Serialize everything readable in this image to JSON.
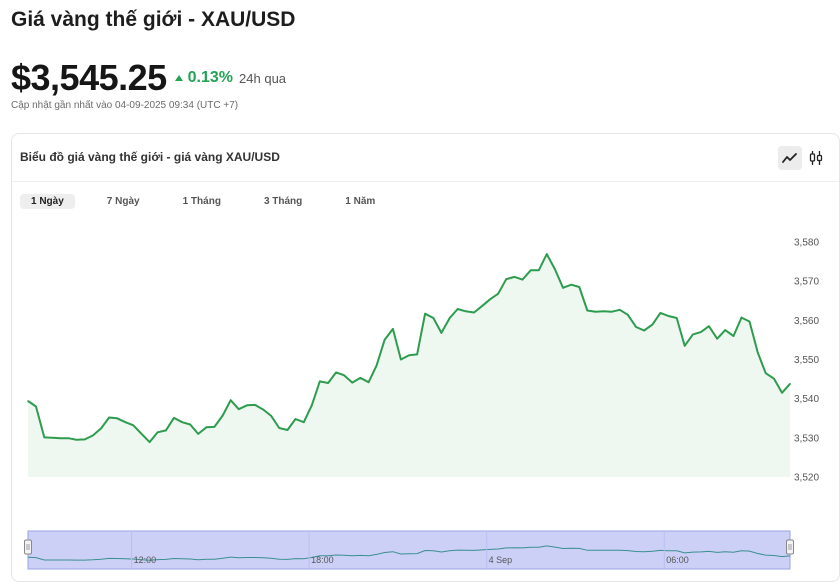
{
  "header": {
    "title": "Giá vàng thế giới - XAU/USD",
    "price": "$3,545.25",
    "change": "0.13%",
    "period": "24h qua",
    "updated": "Cập nhật gần nhất vào 04-09-2025 09:34 (UTC +7)"
  },
  "card": {
    "title": "Biểu đồ giá vàng thế giới - giá vàng XAU/USD",
    "chart_type_buttons": [
      {
        "name": "line-chart-icon",
        "active": true
      },
      {
        "name": "candlestick-icon",
        "active": false
      }
    ],
    "tabs": [
      {
        "label": "1 Ngày",
        "active": true
      },
      {
        "label": "7 Ngày",
        "active": false
      },
      {
        "label": "1 Tháng",
        "active": false
      },
      {
        "label": "3 Tháng",
        "active": false
      },
      {
        "label": "1 Năm",
        "active": false
      }
    ]
  },
  "colors": {
    "line": "#2e9c4e",
    "area_fill": "#eef8f1",
    "up": "#23a455",
    "navigator_fill": "#ccd0f6",
    "navigator_border": "#9aa3e6",
    "navigator_line": "#3a8f8f"
  },
  "chart_data": {
    "type": "area",
    "title": "Biểu đồ giá vàng thế giới - giá vàng XAU/USD",
    "xlabel": "",
    "ylabel": "",
    "ylim": [
      3520,
      3580
    ],
    "yticks": [
      3520,
      3530,
      3540,
      3550,
      3560,
      3570,
      3580
    ],
    "ytick_labels": [
      "3,520",
      "3,530",
      "3,540",
      "3,550",
      "3,560",
      "3,570",
      "3,580"
    ],
    "y_axis_position": "right",
    "grid": false,
    "legend": "none",
    "x_range_hours": [
      0,
      24
    ],
    "navigator_ticks": [
      {
        "label": "12:00",
        "t": 3.5
      },
      {
        "label": "18:00",
        "t": 9.5
      },
      {
        "label": "4 Sep",
        "t": 15.5
      },
      {
        "label": "06:00",
        "t": 21.5
      }
    ],
    "series": [
      {
        "values": [
          [
            0.0,
            3539.4
          ],
          [
            0.27,
            3538.0
          ],
          [
            0.55,
            3530.1
          ],
          [
            0.82,
            3530.0
          ],
          [
            1.1,
            3529.9
          ],
          [
            1.37,
            3529.9
          ],
          [
            1.64,
            3529.5
          ],
          [
            1.92,
            3529.6
          ],
          [
            2.19,
            3530.6
          ],
          [
            2.47,
            3532.4
          ],
          [
            2.74,
            3535.2
          ],
          [
            3.01,
            3535.0
          ],
          [
            3.29,
            3534.0
          ],
          [
            3.56,
            3533.2
          ],
          [
            3.84,
            3531.0
          ],
          [
            4.11,
            3528.9
          ],
          [
            4.38,
            3531.4
          ],
          [
            4.66,
            3531.9
          ],
          [
            4.93,
            3535.1
          ],
          [
            5.21,
            3534.0
          ],
          [
            5.48,
            3533.4
          ],
          [
            5.75,
            3531.0
          ],
          [
            6.03,
            3532.7
          ],
          [
            6.3,
            3532.8
          ],
          [
            6.58,
            3535.7
          ],
          [
            6.85,
            3539.6
          ],
          [
            7.12,
            3537.3
          ],
          [
            7.4,
            3538.3
          ],
          [
            7.67,
            3538.4
          ],
          [
            7.95,
            3537.2
          ],
          [
            8.22,
            3535.6
          ],
          [
            8.49,
            3532.5
          ],
          [
            8.77,
            3532.0
          ],
          [
            9.04,
            3534.8
          ],
          [
            9.32,
            3534.0
          ],
          [
            9.59,
            3538.3
          ],
          [
            9.86,
            3544.4
          ],
          [
            10.14,
            3544.0
          ],
          [
            10.41,
            3546.7
          ],
          [
            10.68,
            3546.0
          ],
          [
            10.96,
            3544.1
          ],
          [
            11.23,
            3545.3
          ],
          [
            11.51,
            3544.2
          ],
          [
            11.78,
            3548.5
          ],
          [
            12.05,
            3555.0
          ],
          [
            12.33,
            3557.8
          ],
          [
            12.6,
            3550.0
          ],
          [
            12.88,
            3551.1
          ],
          [
            13.15,
            3551.3
          ],
          [
            13.42,
            3561.7
          ],
          [
            13.7,
            3560.6
          ],
          [
            13.97,
            3556.8
          ],
          [
            14.25,
            3560.6
          ],
          [
            14.52,
            3562.9
          ],
          [
            14.79,
            3562.3
          ],
          [
            15.07,
            3562.0
          ],
          [
            15.34,
            3563.6
          ],
          [
            15.62,
            3565.4
          ],
          [
            15.89,
            3566.8
          ],
          [
            16.16,
            3570.5
          ],
          [
            16.44,
            3571.1
          ],
          [
            16.71,
            3570.4
          ],
          [
            16.99,
            3572.8
          ],
          [
            17.26,
            3572.8
          ],
          [
            17.53,
            3576.9
          ],
          [
            17.81,
            3573.0
          ],
          [
            18.08,
            3568.3
          ],
          [
            18.36,
            3569.1
          ],
          [
            18.63,
            3568.5
          ],
          [
            18.9,
            3562.5
          ],
          [
            19.18,
            3562.2
          ],
          [
            19.45,
            3562.3
          ],
          [
            19.73,
            3562.2
          ],
          [
            20.0,
            3562.7
          ],
          [
            20.27,
            3561.4
          ],
          [
            20.55,
            3558.3
          ],
          [
            20.82,
            3557.4
          ],
          [
            21.1,
            3558.9
          ],
          [
            21.37,
            3561.9
          ],
          [
            21.64,
            3561.1
          ],
          [
            21.92,
            3560.6
          ],
          [
            22.19,
            3553.5
          ],
          [
            22.47,
            3556.4
          ],
          [
            22.74,
            3557.0
          ],
          [
            23.01,
            3558.5
          ],
          [
            23.29,
            3555.3
          ],
          [
            23.56,
            3557.5
          ],
          [
            23.84,
            3556.0
          ],
          [
            24.11,
            3560.7
          ],
          [
            24.38,
            3559.7
          ],
          [
            24.66,
            3551.8
          ],
          [
            24.93,
            3546.5
          ],
          [
            25.21,
            3545.1
          ],
          [
            25.48,
            3541.5
          ],
          [
            25.75,
            3543.8
          ]
        ]
      }
    ]
  }
}
